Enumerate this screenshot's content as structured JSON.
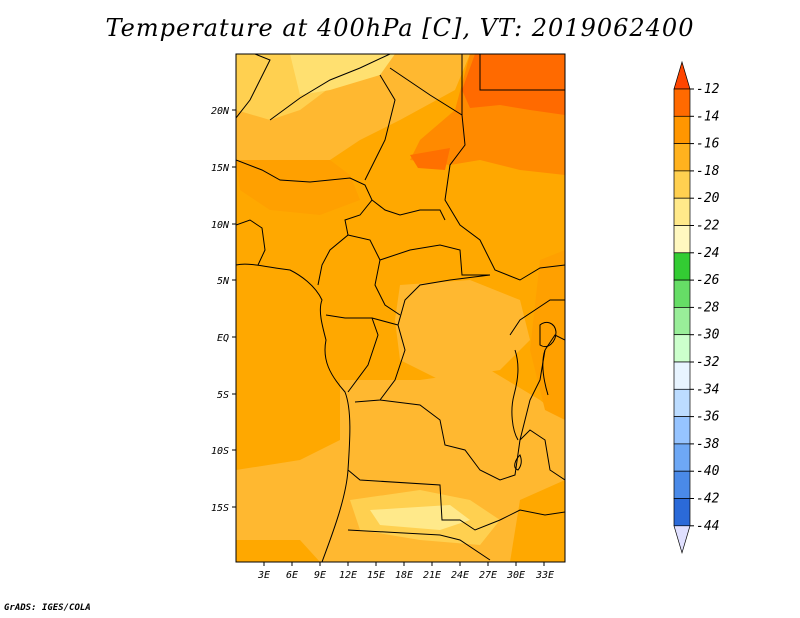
{
  "title": "Temperature at 400hPa [C], VT: 2019062400",
  "credit": "GrADS: IGES/COLA",
  "map": {
    "lon_labels": [
      "3E",
      "6E",
      "9E",
      "12E",
      "15E",
      "18E",
      "21E",
      "24E",
      "27E",
      "30E",
      "33E"
    ],
    "lat_labels": [
      "20N",
      "15N",
      "10N",
      "5N",
      "EQ",
      "5S",
      "10S",
      "15S"
    ]
  },
  "colorbar": {
    "labels": [
      "-12",
      "-14",
      "-16",
      "-18",
      "-20",
      "-22",
      "-24",
      "-26",
      "-28",
      "-30",
      "-32",
      "-34",
      "-36",
      "-38",
      "-40",
      "-42",
      "-44"
    ],
    "colors": [
      "#ff6a00",
      "#ff9600",
      "#ffb21e",
      "#ffd050",
      "#ffe98a",
      "#fff8c0",
      "#33cc33",
      "#66dd66",
      "#99ee99",
      "#ccffcc",
      "#e8f4ff",
      "#bcdcff",
      "#96c4ff",
      "#6ea8f5",
      "#4a8ae8",
      "#2b6ad8",
      "#1448b8",
      "#0a2090",
      "#000a60"
    ],
    "top_arrow_color": "#ff4500",
    "bottom_arrow_color": "#e0e0ff"
  }
}
